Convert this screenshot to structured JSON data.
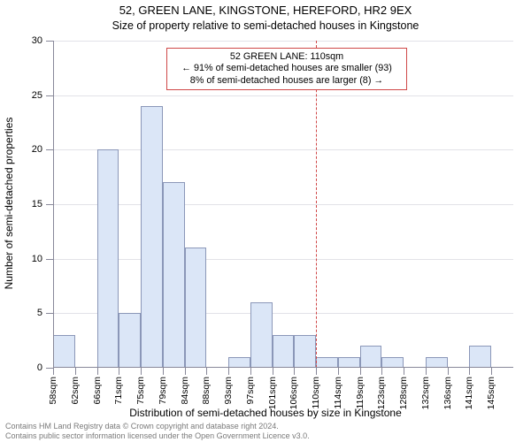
{
  "title": "52, GREEN LANE, KINGSTONE, HEREFORD, HR2 9EX",
  "subtitle": "Size of property relative to semi-detached houses in Kingstone",
  "ylabel": "Number of semi-detached properties",
  "xlabel": "Distribution of semi-detached houses by size in Kingstone",
  "footer_line1": "Contains HM Land Registry data © Crown copyright and database right 2024.",
  "footer_line2": "Contains public sector information licensed under the Open Government Licence v3.0.",
  "chart": {
    "type": "histogram",
    "background_color": "#ffffff",
    "grid_color": "#e2e2e8",
    "axis_color": "#888899",
    "bar_fill": "#dbe6f7",
    "bar_border": "#8b97b8",
    "refline_color": "#d04848",
    "annot_border": "#d04848",
    "ylim": [
      0,
      30
    ],
    "ytick_step": 5,
    "yticks": [
      0,
      5,
      10,
      15,
      20,
      25,
      30
    ],
    "x_tick_labels": [
      "58sqm",
      "62sqm",
      "66sqm",
      "71sqm",
      "75sqm",
      "79sqm",
      "84sqm",
      "88sqm",
      "93sqm",
      "97sqm",
      "101sqm",
      "106sqm",
      "110sqm",
      "114sqm",
      "119sqm",
      "123sqm",
      "128sqm",
      "132sqm",
      "136sqm",
      "141sqm",
      "145sqm"
    ],
    "values": [
      3,
      0,
      20,
      5,
      24,
      17,
      11,
      0,
      1,
      6,
      3,
      3,
      1,
      1,
      2,
      1,
      0,
      1,
      0,
      2,
      0
    ],
    "reference_index": 12.0,
    "annotation": {
      "line1": "52 GREEN LANE: 110sqm",
      "line2": "← 91% of semi-detached houses are smaller (93)",
      "line3": "8% of semi-detached houses are larger (8) →"
    },
    "title_fontsize": 13,
    "label_fontsize": 12,
    "tick_fontsize": 11
  }
}
